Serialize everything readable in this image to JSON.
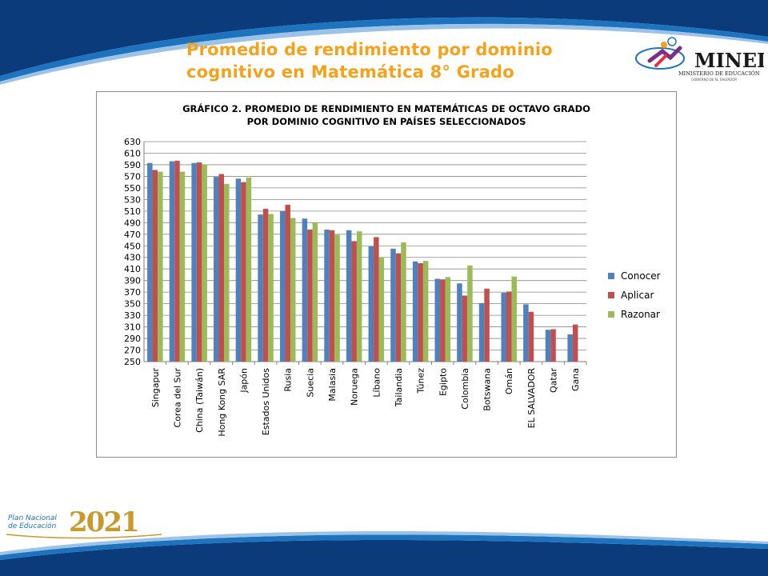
{
  "slide": {
    "title_line1": "Promedio de rendimiento por dominio",
    "title_line2": "cognitivo en Matemática 8° Grado"
  },
  "logos": {
    "mined_name": "MINED",
    "mined_sub": "MINISTERIO DE EDUCACIÓN",
    "mined_sub2": "GOBIERNO DE EL SALVADOR",
    "plan_text1": "Plan Nacional",
    "plan_text2": "de Educación",
    "plan_year": "2021"
  },
  "colors": {
    "top_band": "#0b3b7a",
    "accent_blue": "#1e73be",
    "title_orange": "#f4a21c",
    "gold": "#c89a2e"
  },
  "chart_data": {
    "type": "bar",
    "title_line1": "GRÁFICO 2. PROMEDIO DE RENDIMIENTO EN MATEMÁTICAS DE OCTAVO GRADO",
    "title_line2": "POR DOMINIO COGNITIVO EN PAÍSES SELECCIONADOS",
    "categories": [
      "Singapur",
      "Corea del Sur",
      "China (Taiwán)",
      "Hong Kong SAR",
      "Japón",
      "Estados Unidos",
      "Rusia",
      "Suecia",
      "Malasia",
      "Noruega",
      "Líbano",
      "Tailandia",
      "Túnez",
      "Egipto",
      "Colombia",
      "Botswana",
      "Omán",
      "EL SALVADOR",
      "Qatar",
      "Gana"
    ],
    "series": [
      {
        "name": "Conocer",
        "color": "#4f81bd",
        "values": [
          593,
          596,
          593,
          569,
          566,
          504,
          510,
          497,
          478,
          477,
          449,
          445,
          423,
          393,
          385,
          351,
          369,
          349,
          305,
          297
        ]
      },
      {
        "name": "Aplicar",
        "color": "#c0504d",
        "values": [
          581,
          597,
          594,
          574,
          560,
          514,
          521,
          478,
          477,
          458,
          465,
          437,
          420,
          392,
          364,
          376,
          371,
          336,
          306,
          314
        ]
      },
      {
        "name": "Razonar",
        "color": "#9bbb59",
        "values": [
          578,
          578,
          590,
          557,
          568,
          505,
          498,
          490,
          469,
          475,
          430,
          456,
          424,
          396,
          416,
          null,
          397,
          null,
          null,
          null
        ]
      }
    ],
    "ylim": [
      250,
      630
    ],
    "yticks": [
      630,
      610,
      590,
      570,
      550,
      530,
      510,
      490,
      470,
      450,
      430,
      410,
      390,
      370,
      350,
      330,
      310,
      290,
      270,
      250
    ],
    "grid": true,
    "legend_position": "right"
  }
}
